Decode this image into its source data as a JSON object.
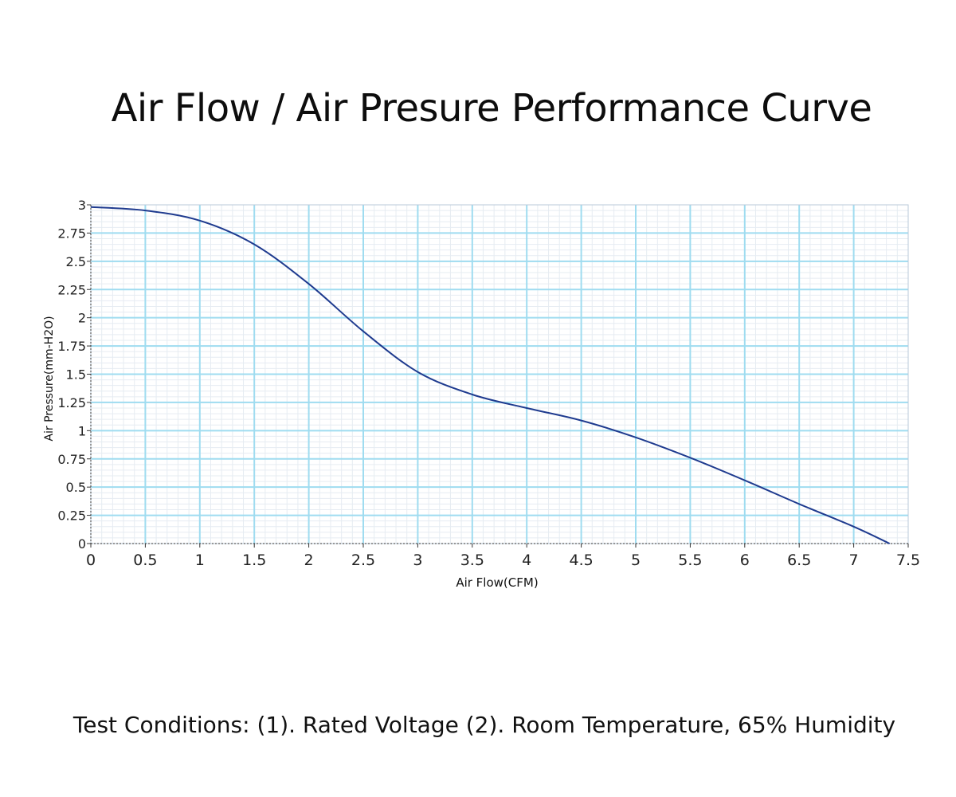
{
  "chart_data": {
    "type": "line",
    "title": "Air Flow / Air Presure Performance Curve",
    "xlabel": "Air Flow(CFM)",
    "ylabel": "Air Pressure(mm-H2O)",
    "xlim": [
      0,
      7.5
    ],
    "ylim": [
      0,
      3
    ],
    "xticks": [
      "0",
      "0.5",
      "1",
      "1.5",
      "2",
      "2.5",
      "3",
      "3.5",
      "4",
      "4.5",
      "5",
      "5.5",
      "6",
      "6.5",
      "7",
      "7.5"
    ],
    "yticks": [
      "0",
      "0.25",
      "0.5",
      "0.75",
      "1",
      "1.25",
      "1.5",
      "1.75",
      "2",
      "2.25",
      "2.5",
      "2.75",
      "3"
    ],
    "grid": true,
    "series": [
      {
        "name": "Performance Curve",
        "color": "#1f3b8f",
        "x": [
          0,
          0.5,
          1,
          1.5,
          2,
          2.5,
          3,
          3.5,
          4,
          4.5,
          5,
          5.5,
          6,
          6.5,
          7,
          7.33
        ],
        "y": [
          2.98,
          2.95,
          2.86,
          2.65,
          2.3,
          1.88,
          1.52,
          1.32,
          1.2,
          1.09,
          0.94,
          0.76,
          0.56,
          0.35,
          0.15,
          0
        ]
      }
    ]
  },
  "footnote": "Test Conditions:  (1). Rated Voltage  (2). Room Temperature, 65% Humidity"
}
